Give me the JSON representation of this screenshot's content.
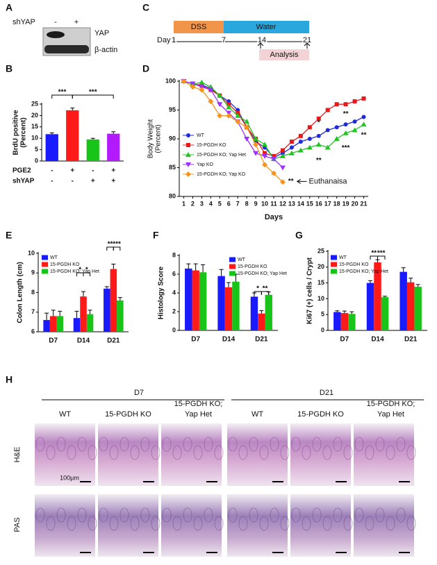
{
  "panel_labels": [
    "A",
    "B",
    "C",
    "D",
    "E",
    "F",
    "G",
    "H"
  ],
  "blot": {
    "treatment": "shYAP",
    "lanes": [
      "-",
      "+"
    ],
    "bands": [
      "YAP",
      "β-actin"
    ]
  },
  "timeline": {
    "phases": [
      "DSS",
      "Water"
    ],
    "axis_label": "Day",
    "days": [
      "1",
      "7",
      "14",
      "21"
    ],
    "analysis": "Analysis"
  },
  "histology": {
    "groups": [
      "D7",
      "D21"
    ],
    "columns": [
      [
        "WT"
      ],
      [
        "15-PGDH KO"
      ],
      [
        "15-PGDH KO;",
        "Yap Het"
      ]
    ],
    "rows": [
      "H&E",
      "PAS"
    ],
    "scale": "100μm"
  },
  "chart_data": [
    {
      "type": "bar",
      "ylabel": [
        "BrdU positive",
        "(Percent)"
      ],
      "values": [
        11.8,
        22.3,
        9.5,
        12
      ],
      "errors": [
        0.6,
        1,
        0.5,
        0.9
      ],
      "colors": [
        "#1a1aff",
        "#ff1a1a",
        "#19c419",
        "#b31aff"
      ],
      "conditions": [
        {
          "label": "PGE2",
          "signs": [
            "-",
            "+",
            "-",
            "+"
          ]
        },
        {
          "label": "shYAP",
          "signs": [
            "-",
            "-",
            "+",
            "+"
          ]
        }
      ],
      "ylim": [
        0,
        25
      ],
      "yticks": [
        0,
        5,
        10,
        15,
        20,
        25
      ],
      "annotations": [
        "***",
        "***"
      ]
    },
    {
      "type": "line",
      "ylabel": [
        "Body Weight",
        "(Percent)"
      ],
      "xlabel": "Days",
      "x": [
        1,
        2,
        3,
        4,
        5,
        6,
        7,
        8,
        9,
        10,
        11,
        12,
        13,
        14,
        15,
        16,
        17,
        18,
        19,
        20,
        21
      ],
      "xlim": [
        0.5,
        21.5
      ],
      "xticks": [
        1,
        2,
        3,
        4,
        5,
        6,
        7,
        8,
        9,
        10,
        11,
        12,
        13,
        14,
        15,
        16,
        17,
        18,
        19,
        20,
        21
      ],
      "ylim": [
        80,
        100
      ],
      "yticks": [
        80,
        85,
        90,
        95,
        100
      ],
      "series": [
        {
          "name": "WT",
          "color": "#1f2bd6",
          "marker": "circle",
          "values": [
            100,
            99.5,
            99.3,
            98.8,
            97.5,
            96.5,
            95,
            92,
            89.5,
            88.5,
            86.8,
            87.5,
            88.5,
            89.5,
            90,
            90.5,
            91.5,
            92,
            92.5,
            93,
            93.8
          ]
        },
        {
          "name": "15-PGDH KO",
          "color": "#e41a1c",
          "marker": "square",
          "values": [
            100,
            99.5,
            99.2,
            98.5,
            97.5,
            96,
            94.5,
            92,
            90,
            87.5,
            87,
            88,
            89.5,
            90.5,
            92,
            93.5,
            95,
            96,
            96,
            96.5,
            97
          ]
        },
        {
          "name": "15-PGDH KO; Yap Het",
          "color": "#22c422",
          "marker": "triangle",
          "values": [
            100,
            99.5,
            99.8,
            99,
            97.5,
            95.5,
            94,
            93,
            90,
            89,
            86.5,
            87,
            87.5,
            88,
            88.5,
            89,
            88.5,
            90,
            91,
            91.5,
            92.5
          ]
        },
        {
          "name": "Yap KO",
          "color": "#9b30ff",
          "marker": "triangle-down",
          "values": [
            100,
            99.6,
            99,
            98.5,
            96,
            94.5,
            93,
            90,
            87.5,
            87,
            86.5,
            85,
            null,
            null,
            null,
            null,
            null,
            null,
            null,
            null,
            null
          ]
        },
        {
          "name": "15-PGDH KO; Yap KO",
          "color": "#f7941d",
          "marker": "diamond",
          "values": [
            100,
            99,
            98.5,
            96.5,
            94,
            94,
            93,
            92,
            89,
            85.5,
            84,
            82.5,
            null,
            null,
            null,
            null,
            null,
            null,
            null,
            null,
            null
          ]
        }
      ],
      "annotations": [
        "**",
        "Euthanaisa",
        "*",
        "**",
        "**",
        "***",
        "**"
      ]
    },
    {
      "type": "bar",
      "ylabel": "Colon Length (cm)",
      "categories": [
        "D7",
        "D14",
        "D21"
      ],
      "ylim": [
        6,
        10
      ],
      "yticks": [
        6,
        7,
        8,
        9,
        10
      ],
      "series": [
        {
          "name": "WT",
          "color": "#1a1aff",
          "values": [
            6.6,
            6.7,
            8.2
          ],
          "errors": [
            0.35,
            0.35,
            0.1
          ]
        },
        {
          "name": "15-PGDH KO",
          "color": "#ff1a1a",
          "values": [
            6.8,
            7.8,
            9.2
          ],
          "errors": [
            0.3,
            0.25,
            0.25
          ]
        },
        {
          "name": "15-PGDH KO; Yap Het",
          "color": "#19c419",
          "values": [
            6.8,
            6.9,
            7.6
          ],
          "errors": [
            0.25,
            0.2,
            0.15
          ]
        }
      ],
      "annotations": [
        "*",
        "*",
        "**",
        "***"
      ]
    },
    {
      "type": "bar",
      "ylabel": "Histology Score",
      "categories": [
        "D7",
        "D14",
        "D21"
      ],
      "ylim": [
        0,
        8
      ],
      "yticks": [
        0,
        2,
        4,
        6,
        8
      ],
      "series": [
        {
          "name": "WT",
          "color": "#1a1aff",
          "values": [
            6.6,
            5.8,
            3.6
          ],
          "errors": [
            0.5,
            0.7,
            0.4
          ]
        },
        {
          "name": "15-PGDH KO",
          "color": "#ff1a1a",
          "values": [
            6.4,
            4.6,
            1.8
          ],
          "errors": [
            0.7,
            0.5,
            0.3
          ]
        },
        {
          "name": "15-PGDH KO; Yap Het",
          "color": "#19c419",
          "values": [
            6.2,
            5.2,
            3.8
          ],
          "errors": [
            0.8,
            0.8,
            0.3
          ]
        }
      ],
      "annotations": [
        "*",
        "**"
      ]
    },
    {
      "type": "bar",
      "ylabel": "Ki67 (+) cells / Crypt",
      "categories": [
        "D7",
        "D14",
        "D21"
      ],
      "ylim": [
        0,
        25
      ],
      "yticks": [
        0,
        5,
        10,
        15,
        20,
        25
      ],
      "series": [
        {
          "name": "WT",
          "color": "#1a1aff",
          "values": [
            5.8,
            15,
            18.5
          ],
          "errors": [
            0.4,
            0.7,
            1.3
          ]
        },
        {
          "name": "15-PGDH KO",
          "color": "#ff1a1a",
          "values": [
            5.5,
            21.5,
            15.2
          ],
          "errors": [
            0.6,
            0.8,
            1.3
          ]
        },
        {
          "name": "15-PGDH KO; Yap Het",
          "color": "#19c419",
          "values": [
            5.2,
            10.5,
            13.8
          ],
          "errors": [
            0.7,
            0.3,
            0.7
          ]
        }
      ],
      "annotations": [
        "**",
        "***"
      ]
    }
  ]
}
